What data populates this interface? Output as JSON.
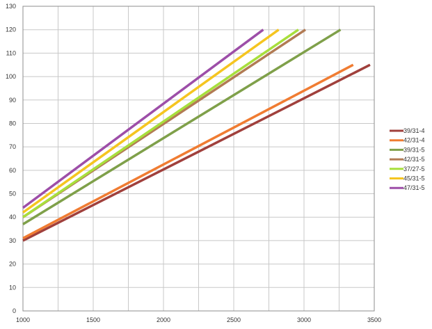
{
  "chart_data": {
    "type": "line",
    "xlim": [
      1000,
      3500
    ],
    "ylim": [
      0,
      130
    ],
    "x_ticks": [
      1000,
      1500,
      2000,
      2500,
      3000,
      3500
    ],
    "y_ticks": [
      0,
      10,
      20,
      30,
      40,
      50,
      60,
      70,
      80,
      90,
      100,
      110,
      120,
      130
    ],
    "grid": true,
    "legend_position": "right",
    "series": [
      {
        "name": "39/31-4",
        "color": "#a0403c",
        "x": [
          1000,
          3470
        ],
        "y": [
          30,
          105
        ]
      },
      {
        "name": "42/31-4",
        "color": "#f07c32",
        "x": [
          1000,
          3350
        ],
        "y": [
          31,
          105
        ]
      },
      {
        "name": "39/31-5",
        "color": "#7fa04a",
        "x": [
          1000,
          3260
        ],
        "y": [
          37,
          120
        ]
      },
      {
        "name": "42/31-5",
        "color": "#b27b54",
        "x": [
          1000,
          3010
        ],
        "y": [
          40,
          120
        ]
      },
      {
        "name": "37/27-5",
        "color": "#a8df3c",
        "x": [
          1000,
          2960
        ],
        "y": [
          40,
          120
        ]
      },
      {
        "name": "45/31-5",
        "color": "#f5c520",
        "x": [
          1000,
          2820
        ],
        "y": [
          42,
          120
        ]
      },
      {
        "name": "47/31-5",
        "color": "#9d4ea8",
        "x": [
          1000,
          2710
        ],
        "y": [
          44,
          120
        ]
      }
    ]
  }
}
